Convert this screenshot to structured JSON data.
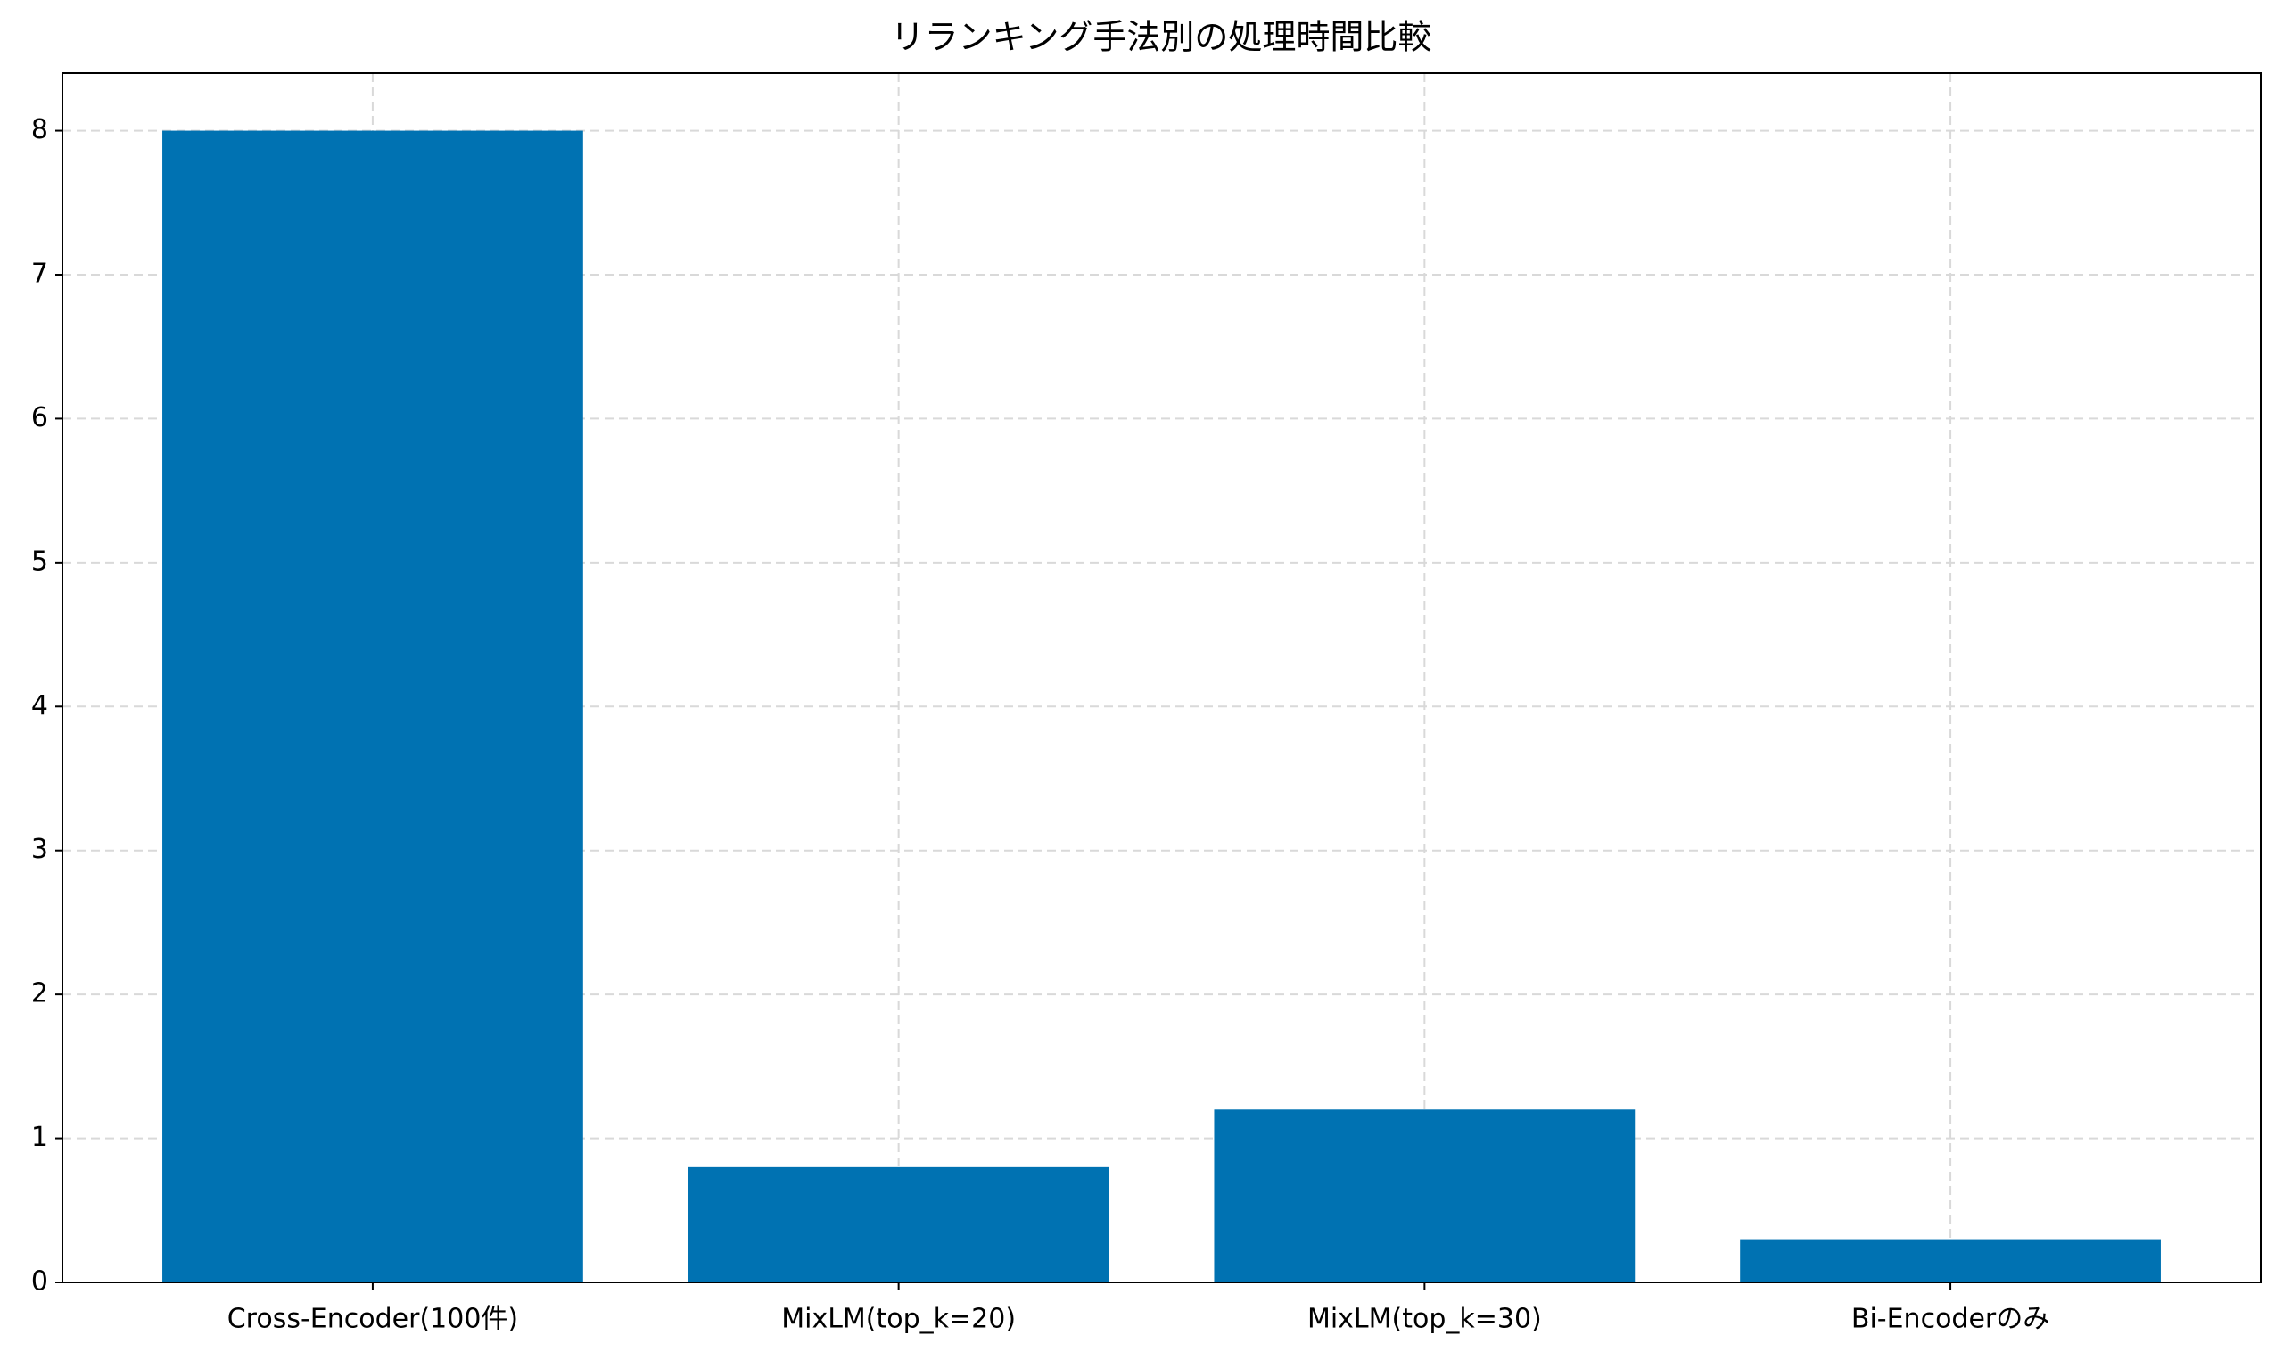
{
  "chart_data": {
    "type": "bar",
    "title": "リランキング手法別の処理時間比較",
    "categories": [
      "Cross-Encoder(100件)",
      "MixLM(top_k=20)",
      "MixLM(top_k=30)",
      "Bi-Encoderのみ"
    ],
    "values": [
      8.0,
      0.8,
      1.2,
      0.3
    ],
    "color": "#0072b2",
    "ylim": [
      0,
      8.4
    ],
    "yticks": [
      0,
      1,
      2,
      3,
      4,
      5,
      6,
      7,
      8
    ],
    "grid": true
  }
}
